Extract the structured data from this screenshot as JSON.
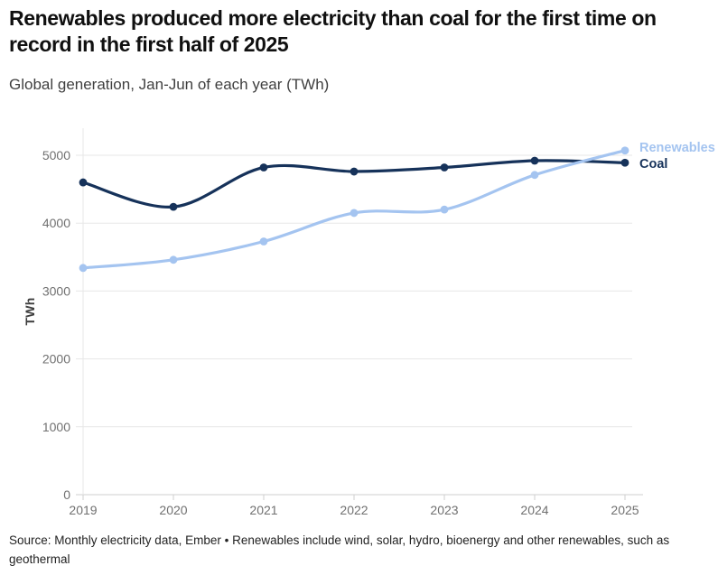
{
  "header": {
    "title": "Renewables produced more electricity than coal for the first time on record in the first half of 2025",
    "subtitle": "Global generation, Jan-Jun of each year (TWh)"
  },
  "chart_data": {
    "type": "line",
    "x": [
      2019,
      2020,
      2021,
      2022,
      2023,
      2024,
      2025
    ],
    "series": [
      {
        "name": "Coal",
        "color": "#16325a",
        "values": [
          4600,
          4240,
          4820,
          4760,
          4820,
          4920,
          4890
        ]
      },
      {
        "name": "Renewables",
        "color": "#a4c4f0",
        "values": [
          3340,
          3460,
          3730,
          4150,
          4200,
          4710,
          5070
        ]
      }
    ],
    "title": "",
    "xlabel": "",
    "ylabel": "TWh",
    "ylim": [
      0,
      5000
    ],
    "ytick_step": 1000,
    "grid": "horizontal",
    "legend_position": "right-of-line-ends",
    "line_style": "smooth",
    "markers": "filled-circles"
  },
  "colors": {
    "coal": "#16325a",
    "renewables": "#a4c4f0",
    "gridline": "#e7e7e7",
    "axis_line": "#cfcfcf",
    "tick_label": "#707070"
  },
  "footer": {
    "source": "Source: Monthly electricity data, Ember • Renewables include wind, solar, hydro, bioenergy and other renewables, such as geothermal"
  }
}
